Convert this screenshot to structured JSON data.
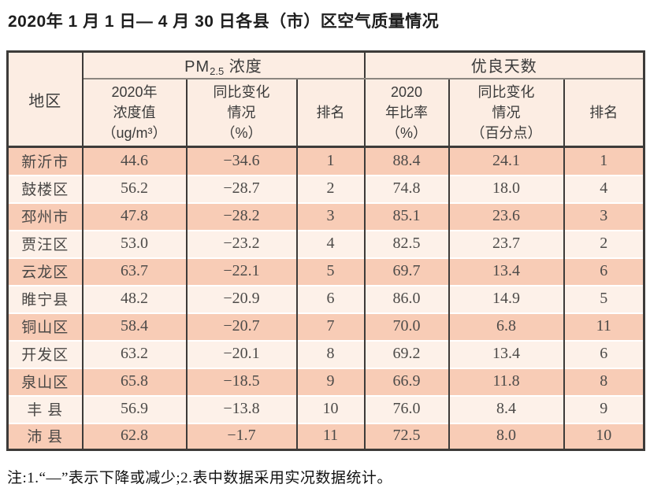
{
  "page": {
    "title": "2020年 1 月 1 日— 4 月 30 日各县（市）区空气质量情况",
    "note": "注:1.“—”表示下降或减少;2.表中数据采用实况数据统计。"
  },
  "table": {
    "header": {
      "region": "地区",
      "pm_group": {
        "prefix": "PM",
        "sub": "2.5",
        "suffix": " 浓度"
      },
      "good_group": "优良天数",
      "pm_value": [
        "2020年",
        "浓度值",
        "（ug/m³）"
      ],
      "pm_change": [
        "同比变化",
        "情况",
        "（%）"
      ],
      "pm_rank": "排名",
      "good_ratio": [
        "2020",
        "年比率",
        "（%）"
      ],
      "good_change": [
        "同比变化",
        "情况",
        "（百分点）"
      ],
      "good_rank": "排名"
    },
    "rows": [
      {
        "region": "新沂市",
        "pm_value": "44.6",
        "pm_change": "−34.6",
        "pm_rank": "1",
        "good_ratio": "88.4",
        "good_change": "24.1",
        "good_rank": "1"
      },
      {
        "region": "鼓楼区",
        "pm_value": "56.2",
        "pm_change": "−28.7",
        "pm_rank": "2",
        "good_ratio": "74.8",
        "good_change": "18.0",
        "good_rank": "4"
      },
      {
        "region": "邳州市",
        "pm_value": "47.8",
        "pm_change": "−28.2",
        "pm_rank": "3",
        "good_ratio": "85.1",
        "good_change": "23.6",
        "good_rank": "3"
      },
      {
        "region": "贾汪区",
        "pm_value": "53.0",
        "pm_change": "−23.2",
        "pm_rank": "4",
        "good_ratio": "82.5",
        "good_change": "23.7",
        "good_rank": "2"
      },
      {
        "region": "云龙区",
        "pm_value": "63.7",
        "pm_change": "−22.1",
        "pm_rank": "5",
        "good_ratio": "69.7",
        "good_change": "13.4",
        "good_rank": "6"
      },
      {
        "region": "睢宁县",
        "pm_value": "48.2",
        "pm_change": "−20.9",
        "pm_rank": "6",
        "good_ratio": "86.0",
        "good_change": "14.9",
        "good_rank": "5"
      },
      {
        "region": "铜山区",
        "pm_value": "58.4",
        "pm_change": "−20.7",
        "pm_rank": "7",
        "good_ratio": "70.0",
        "good_change": "6.8",
        "good_rank": "11"
      },
      {
        "region": "开发区",
        "pm_value": "63.2",
        "pm_change": "−20.1",
        "pm_rank": "8",
        "good_ratio": "69.2",
        "good_change": "13.4",
        "good_rank": "6"
      },
      {
        "region": "泉山区",
        "pm_value": "65.8",
        "pm_change": "−18.5",
        "pm_rank": "9",
        "good_ratio": "66.9",
        "good_change": "11.8",
        "good_rank": "8"
      },
      {
        "region": "丰 县",
        "pm_value": "56.9",
        "pm_change": "−13.8",
        "pm_rank": "10",
        "good_ratio": "76.0",
        "good_change": "8.4",
        "good_rank": "9"
      },
      {
        "region": "沛 县",
        "pm_value": "62.8",
        "pm_change": "−1.7",
        "pm_rank": "11",
        "good_ratio": "72.5",
        "good_change": "8.0",
        "good_rank": "10"
      }
    ]
  },
  "colors": {
    "border": "#3d3b39",
    "divider": "#8c8680",
    "header_bg": "#fcede3",
    "row_dark": "#f8ccb6",
    "row_light": "#fdf1e9",
    "text_dark": "#4d4b49"
  }
}
